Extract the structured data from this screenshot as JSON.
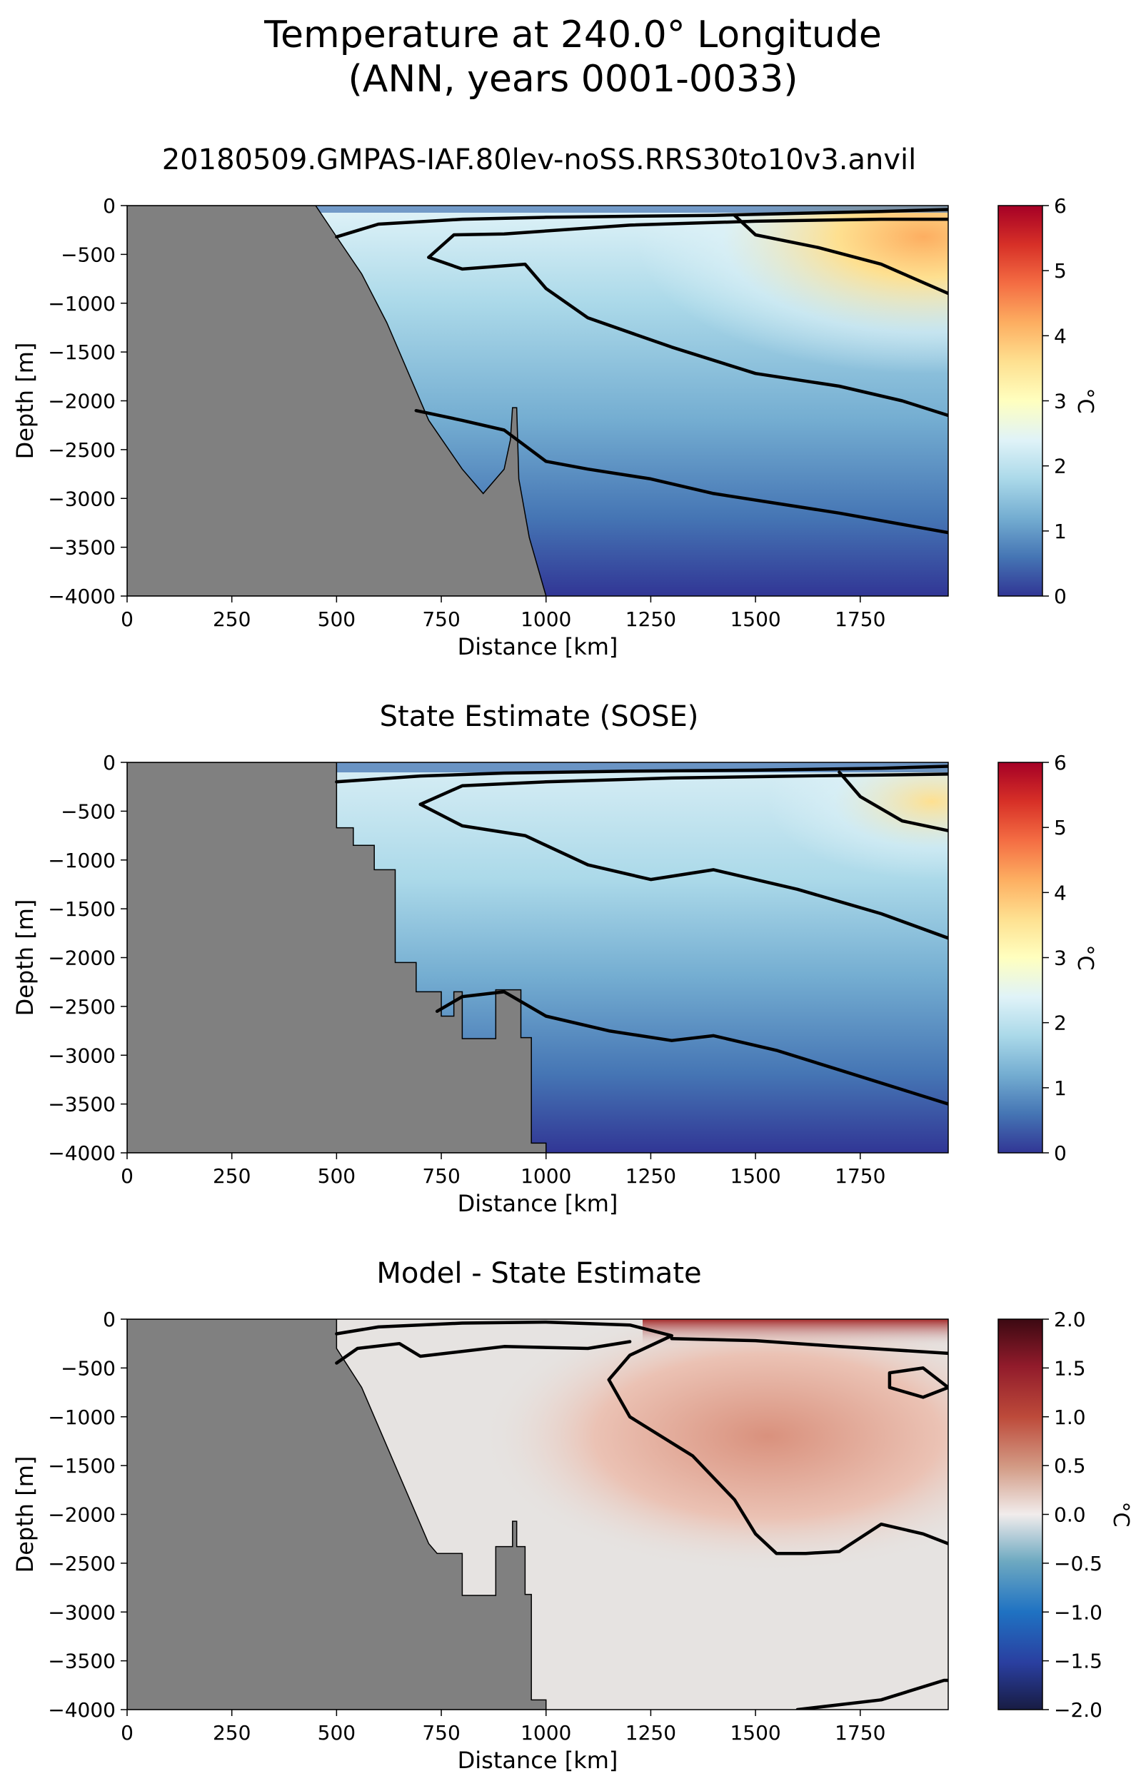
{
  "figure": {
    "title_line1": "Temperature at 240.0° Longitude",
    "title_line2": "(ANN, years 0001-0033)"
  },
  "chart_data": [
    {
      "type": "heatmap",
      "title": "20180509.GMPAS-IAF.80lev-noSS.RRS30to10v3.anvil",
      "xlabel": "Distance [km]",
      "ylabel": "Depth [m]",
      "xlim": [
        0,
        1960
      ],
      "ylim": [
        -4000,
        0
      ],
      "xticks": [
        0,
        250,
        500,
        750,
        1000,
        1250,
        1500,
        1750
      ],
      "yticks": [
        0,
        -500,
        -1000,
        -1500,
        -2000,
        -2500,
        -3000,
        -3500,
        -4000
      ],
      "colorbar": {
        "label": "°C",
        "min": 0,
        "max": 6,
        "ticks": [
          0,
          1,
          2,
          3,
          4,
          5,
          6
        ],
        "colormap": "RdYlBu_r"
      },
      "colors": {
        "land": "#808080",
        "deep": "#313695",
        "mid": "#74add1",
        "light": "#e0f3f8",
        "warm": "#fee090",
        "hot": "#f46d43"
      },
      "bathymetry": [
        [
          450,
          0
        ],
        [
          500,
          -320
        ],
        [
          560,
          -700
        ],
        [
          620,
          -1200
        ],
        [
          680,
          -1800
        ],
        [
          720,
          -2200
        ],
        [
          800,
          -2700
        ],
        [
          850,
          -2950
        ],
        [
          900,
          -2700
        ],
        [
          915,
          -2400
        ],
        [
          920,
          -2070
        ],
        [
          930,
          -2070
        ],
        [
          935,
          -2800
        ],
        [
          960,
          -3400
        ],
        [
          1000,
          -4000
        ]
      ],
      "contours": [
        {
          "level": "0.5",
          "points": [
            [
              500,
              -320
            ],
            [
              600,
              -190
            ],
            [
              800,
              -140
            ],
            [
              1000,
              -120
            ],
            [
              1200,
              -110
            ],
            [
              1400,
              -100
            ],
            [
              1600,
              -80
            ],
            [
              1800,
              -60
            ],
            [
              1960,
              -40
            ]
          ]
        },
        {
          "level": "1.0",
          "points": [
            [
              690,
              -2100
            ],
            [
              800,
              -2200
            ],
            [
              900,
              -2300
            ],
            [
              1000,
              -2620
            ],
            [
              1100,
              -2700
            ],
            [
              1250,
              -2800
            ],
            [
              1400,
              -2950
            ],
            [
              1550,
              -3050
            ],
            [
              1700,
              -3150
            ],
            [
              1960,
              -3350
            ]
          ]
        },
        {
          "level": "1.5",
          "points": [
            [
              720,
              -530
            ],
            [
              780,
              -300
            ],
            [
              900,
              -290
            ],
            [
              1200,
              -200
            ],
            [
              1500,
              -160
            ],
            [
              1800,
              -140
            ],
            [
              1960,
              -140
            ]
          ]
        },
        {
          "level": "1.5b",
          "points": [
            [
              720,
              -530
            ],
            [
              800,
              -650
            ],
            [
              950,
              -600
            ],
            [
              1000,
              -850
            ],
            [
              1100,
              -1150
            ],
            [
              1300,
              -1450
            ],
            [
              1500,
              -1720
            ],
            [
              1700,
              -1850
            ],
            [
              1850,
              -2000
            ],
            [
              1960,
              -2150
            ]
          ]
        },
        {
          "level": "2.5",
          "points": [
            [
              1450,
              -100
            ],
            [
              1500,
              -300
            ],
            [
              1650,
              -430
            ],
            [
              1800,
              -600
            ],
            [
              1960,
              -900
            ]
          ]
        }
      ]
    },
    {
      "type": "heatmap",
      "title": "State Estimate (SOSE)",
      "xlabel": "Distance [km]",
      "ylabel": "Depth [m]",
      "xlim": [
        0,
        1960
      ],
      "ylim": [
        -4000,
        0
      ],
      "xticks": [
        0,
        250,
        500,
        750,
        1000,
        1250,
        1500,
        1750
      ],
      "yticks": [
        0,
        -500,
        -1000,
        -1500,
        -2000,
        -2500,
        -3000,
        -3500,
        -4000
      ],
      "colorbar": {
        "label": "°C",
        "min": 0,
        "max": 6,
        "ticks": [
          0,
          1,
          2,
          3,
          4,
          5,
          6
        ],
        "colormap": "RdYlBu_r"
      },
      "colors": {
        "land": "#808080",
        "deep": "#313695",
        "mid": "#74add1",
        "light": "#e0f3f8",
        "warm": "#fee090",
        "hot": "#f46d43"
      },
      "bathymetry": [
        [
          500,
          0
        ],
        [
          500,
          -670
        ],
        [
          540,
          -670
        ],
        [
          540,
          -850
        ],
        [
          590,
          -850
        ],
        [
          590,
          -1100
        ],
        [
          640,
          -1100
        ],
        [
          640,
          -2050
        ],
        [
          690,
          -2050
        ],
        [
          690,
          -2350
        ],
        [
          750,
          -2350
        ],
        [
          750,
          -2600
        ],
        [
          780,
          -2600
        ],
        [
          780,
          -2350
        ],
        [
          800,
          -2350
        ],
        [
          800,
          -2830
        ],
        [
          880,
          -2830
        ],
        [
          880,
          -2330
        ],
        [
          940,
          -2330
        ],
        [
          940,
          -2820
        ],
        [
          965,
          -2820
        ],
        [
          965,
          -3900
        ],
        [
          1000,
          -3900
        ],
        [
          1000,
          -4000
        ]
      ],
      "contours": [
        {
          "level": "0.5",
          "points": [
            [
              500,
              -200
            ],
            [
              700,
              -140
            ],
            [
              900,
              -110
            ],
            [
              1200,
              -90
            ],
            [
              1500,
              -80
            ],
            [
              1800,
              -60
            ],
            [
              1960,
              -40
            ]
          ]
        },
        {
          "level": "1.0",
          "points": [
            [
              740,
              -2550
            ],
            [
              800,
              -2400
            ],
            [
              900,
              -2350
            ],
            [
              1000,
              -2600
            ],
            [
              1150,
              -2750
            ],
            [
              1300,
              -2850
            ],
            [
              1400,
              -2800
            ],
            [
              1550,
              -2950
            ],
            [
              1700,
              -3150
            ],
            [
              1960,
              -3500
            ]
          ]
        },
        {
          "level": "1.5",
          "points": [
            [
              700,
              -430
            ],
            [
              800,
              -240
            ],
            [
              1000,
              -200
            ],
            [
              1300,
              -160
            ],
            [
              1600,
              -140
            ],
            [
              1800,
              -130
            ],
            [
              1960,
              -120
            ]
          ]
        },
        {
          "level": "1.5b",
          "points": [
            [
              700,
              -430
            ],
            [
              800,
              -650
            ],
            [
              950,
              -750
            ],
            [
              1100,
              -1050
            ],
            [
              1250,
              -1200
            ],
            [
              1400,
              -1100
            ],
            [
              1600,
              -1300
            ],
            [
              1800,
              -1550
            ],
            [
              1960,
              -1800
            ]
          ]
        },
        {
          "level": "2.5",
          "points": [
            [
              1700,
              -100
            ],
            [
              1750,
              -350
            ],
            [
              1850,
              -600
            ],
            [
              1960,
              -700
            ]
          ]
        }
      ]
    },
    {
      "type": "heatmap",
      "title": "Model - State Estimate",
      "xlabel": "Distance [km]",
      "ylabel": "Depth [m]",
      "xlim": [
        0,
        1960
      ],
      "ylim": [
        -4000,
        0
      ],
      "xticks": [
        0,
        250,
        500,
        750,
        1000,
        1250,
        1500,
        1750
      ],
      "yticks": [
        0,
        -500,
        -1000,
        -1500,
        -2000,
        -2500,
        -3000,
        -3500,
        -4000
      ],
      "colorbar": {
        "label": "°C",
        "min": -2.0,
        "max": 2.0,
        "ticks": [
          "2.0",
          "1.5",
          "1.0",
          "0.5",
          "0.0",
          "−0.5",
          "−1.0",
          "−1.5",
          "−2.0"
        ],
        "colormap": "balance"
      },
      "colors": {
        "land": "#808080",
        "neutral": "#e6e3e1",
        "warm": "#d38c78",
        "hot": "#8b1a1a"
      },
      "bathymetry": [
        [
          500,
          0
        ],
        [
          500,
          -300
        ],
        [
          560,
          -700
        ],
        [
          600,
          -1100
        ],
        [
          640,
          -1500
        ],
        [
          680,
          -1900
        ],
        [
          720,
          -2300
        ],
        [
          740,
          -2400
        ],
        [
          800,
          -2400
        ],
        [
          800,
          -2830
        ],
        [
          880,
          -2830
        ],
        [
          880,
          -2330
        ],
        [
          920,
          -2330
        ],
        [
          920,
          -2070
        ],
        [
          930,
          -2070
        ],
        [
          930,
          -2330
        ],
        [
          950,
          -2330
        ],
        [
          950,
          -2820
        ],
        [
          965,
          -2820
        ],
        [
          965,
          -3900
        ],
        [
          1000,
          -3900
        ],
        [
          1000,
          -4000
        ]
      ],
      "contours": [
        {
          "level": "0.25a",
          "points": [
            [
              500,
              -150
            ],
            [
              600,
              -80
            ],
            [
              800,
              -40
            ],
            [
              1000,
              -30
            ],
            [
              1200,
              -60
            ],
            [
              1300,
              -170
            ],
            [
              1200,
              -370
            ],
            [
              1150,
              -620
            ],
            [
              1200,
              -1000
            ],
            [
              1350,
              -1400
            ],
            [
              1450,
              -1850
            ],
            [
              1500,
              -2200
            ],
            [
              1550,
              -2400
            ],
            [
              1620,
              -2400
            ],
            [
              1700,
              -2380
            ],
            [
              1800,
              -2100
            ],
            [
              1900,
              -2200
            ],
            [
              1960,
              -2300
            ]
          ]
        },
        {
          "level": "0.25b",
          "points": [
            [
              1300,
              -200
            ],
            [
              1500,
              -220
            ],
            [
              1700,
              -280
            ],
            [
              1960,
              -350
            ]
          ]
        },
        {
          "level": "0.25c",
          "points": [
            [
              1820,
              -550
            ],
            [
              1900,
              -500
            ],
            [
              1960,
              -700
            ],
            [
              1900,
              -800
            ],
            [
              1820,
              -700
            ],
            [
              1820,
              -550
            ]
          ]
        },
        {
          "level": "-0.25",
          "points": [
            [
              500,
              -450
            ],
            [
              550,
              -300
            ],
            [
              650,
              -250
            ],
            [
              700,
              -380
            ],
            [
              900,
              -280
            ],
            [
              1100,
              -300
            ],
            [
              1200,
              -230
            ]
          ]
        },
        {
          "level": "0.25d",
          "points": [
            [
              1600,
              -4000
            ],
            [
              1800,
              -3900
            ],
            [
              1950,
              -3700
            ],
            [
              1960,
              -3700
            ]
          ]
        }
      ]
    }
  ]
}
